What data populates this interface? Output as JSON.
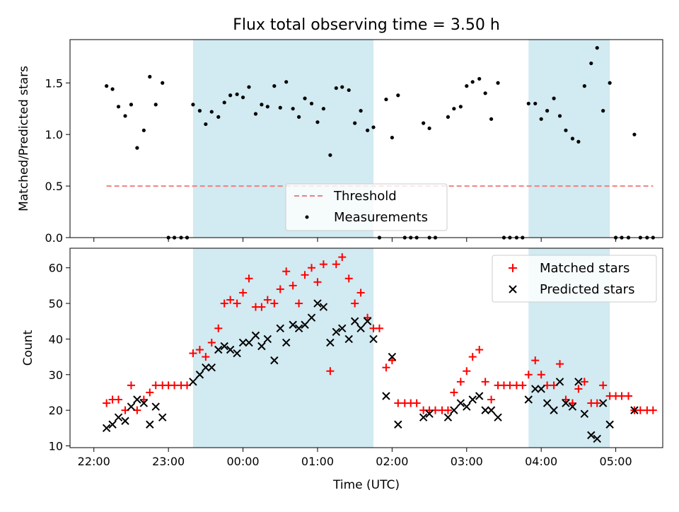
{
  "chart_data": [
    {
      "type": "scatter",
      "title": "Flux total observing time = 3.50 h",
      "xlabel": "",
      "ylabel": "Matched/Predicted stars",
      "xlim": [
        21.68,
        29.63
      ],
      "ylim": [
        0.0,
        1.92
      ],
      "yticks": [
        0.0,
        0.5,
        1.0,
        1.5
      ],
      "yticklabels": [
        "0.0",
        "0.5",
        "1.0",
        "1.5"
      ],
      "shaded_intervals": [
        [
          23.33,
          25.75
        ],
        [
          27.83,
          28.92
        ]
      ],
      "threshold": {
        "label": "Threshold",
        "value": 0.5,
        "x": [
          22.17,
          29.5
        ],
        "color": "#f08080"
      },
      "legend": {
        "position": "lower center",
        "entries": [
          "Threshold",
          "Measurements"
        ]
      },
      "series": [
        {
          "name": "Measurements",
          "marker": "dot",
          "color": "#000000",
          "points": [
            [
              22.17,
              1.47
            ],
            [
              22.25,
              1.44
            ],
            [
              22.33,
              1.27
            ],
            [
              22.42,
              1.18
            ],
            [
              22.5,
              1.29
            ],
            [
              22.58,
              0.87
            ],
            [
              22.67,
              1.04
            ],
            [
              22.75,
              1.56
            ],
            [
              22.83,
              1.29
            ],
            [
              22.92,
              1.5
            ],
            [
              23.0,
              0
            ],
            [
              23.08,
              0
            ],
            [
              23.17,
              0
            ],
            [
              23.25,
              0
            ],
            [
              23.33,
              1.29
            ],
            [
              23.42,
              1.23
            ],
            [
              23.5,
              1.1
            ],
            [
              23.58,
              1.22
            ],
            [
              23.67,
              1.17
            ],
            [
              23.75,
              1.31
            ],
            [
              23.83,
              1.38
            ],
            [
              23.92,
              1.39
            ],
            [
              24.0,
              1.36
            ],
            [
              24.08,
              1.46
            ],
            [
              24.17,
              1.2
            ],
            [
              24.25,
              1.29
            ],
            [
              24.33,
              1.27
            ],
            [
              24.42,
              1.47
            ],
            [
              24.5,
              1.26
            ],
            [
              24.58,
              1.51
            ],
            [
              24.67,
              1.25
            ],
            [
              24.75,
              1.17
            ],
            [
              24.83,
              1.35
            ],
            [
              24.92,
              1.3
            ],
            [
              25.0,
              1.12
            ],
            [
              25.08,
              1.25
            ],
            [
              25.17,
              0.8
            ],
            [
              25.25,
              1.45
            ],
            [
              25.33,
              1.46
            ],
            [
              25.42,
              1.43
            ],
            [
              25.5,
              1.11
            ],
            [
              25.58,
              1.23
            ],
            [
              25.67,
              1.04
            ],
            [
              25.75,
              1.07
            ],
            [
              25.83,
              0
            ],
            [
              25.92,
              1.34
            ],
            [
              26.0,
              0.97
            ],
            [
              26.08,
              1.38
            ],
            [
              26.17,
              0
            ],
            [
              26.25,
              0
            ],
            [
              26.33,
              0
            ],
            [
              26.5,
              0
            ],
            [
              26.58,
              0
            ],
            [
              26.42,
              1.11
            ],
            [
              26.5,
              1.06
            ],
            [
              26.75,
              1.17
            ],
            [
              26.83,
              1.25
            ],
            [
              26.92,
              1.27
            ],
            [
              27.0,
              1.47
            ],
            [
              27.08,
              1.51
            ],
            [
              27.17,
              1.54
            ],
            [
              27.25,
              1.4
            ],
            [
              27.33,
              1.15
            ],
            [
              27.42,
              1.5
            ],
            [
              27.5,
              0
            ],
            [
              27.58,
              0
            ],
            [
              27.67,
              0
            ],
            [
              27.75,
              0
            ],
            [
              27.83,
              1.3
            ],
            [
              27.92,
              1.3
            ],
            [
              28.0,
              1.15
            ],
            [
              28.08,
              1.23
            ],
            [
              28.17,
              1.35
            ],
            [
              28.25,
              1.18
            ],
            [
              28.33,
              1.04
            ],
            [
              28.42,
              0.96
            ],
            [
              28.5,
              0.93
            ],
            [
              28.58,
              1.47
            ],
            [
              28.67,
              1.69
            ],
            [
              28.75,
              1.84
            ],
            [
              28.83,
              1.23
            ],
            [
              28.92,
              1.5
            ],
            [
              29.0,
              0
            ],
            [
              29.08,
              0
            ],
            [
              29.17,
              0
            ],
            [
              29.25,
              1.0
            ],
            [
              29.33,
              0
            ],
            [
              29.42,
              0
            ],
            [
              29.5,
              0
            ]
          ]
        }
      ]
    },
    {
      "type": "scatter",
      "title": "",
      "xlabel": "Time (UTC)",
      "ylabel": "Count",
      "xlim": [
        21.68,
        29.63
      ],
      "ylim": [
        9.5,
        65.5
      ],
      "yticks": [
        10,
        20,
        30,
        40,
        50,
        60
      ],
      "yticklabels": [
        "10",
        "20",
        "30",
        "40",
        "50",
        "60"
      ],
      "xticks": [
        22,
        23,
        24,
        25,
        26,
        27,
        28,
        29
      ],
      "xticklabels": [
        "22:00",
        "23:00",
        "00:00",
        "01:00",
        "02:00",
        "03:00",
        "04:00",
        "05:00"
      ],
      "shaded_intervals": [
        [
          23.33,
          25.75
        ],
        [
          27.83,
          28.92
        ]
      ],
      "legend": {
        "position": "upper right",
        "entries": [
          "Matched stars",
          "Predicted stars"
        ]
      },
      "series": [
        {
          "name": "Matched stars",
          "marker": "plus",
          "color": "#ff0000",
          "points": [
            [
              22.17,
              22
            ],
            [
              22.25,
              23
            ],
            [
              22.33,
              23
            ],
            [
              22.42,
              20
            ],
            [
              22.5,
              27
            ],
            [
              22.58,
              20
            ],
            [
              22.67,
              23
            ],
            [
              22.75,
              25
            ],
            [
              22.83,
              27
            ],
            [
              22.92,
              27
            ],
            [
              23.0,
              27
            ],
            [
              23.08,
              27
            ],
            [
              23.17,
              27
            ],
            [
              23.25,
              27
            ],
            [
              23.33,
              36
            ],
            [
              23.42,
              37
            ],
            [
              23.5,
              35
            ],
            [
              23.58,
              39
            ],
            [
              23.67,
              43
            ],
            [
              23.75,
              50
            ],
            [
              23.83,
              51
            ],
            [
              23.92,
              50
            ],
            [
              24.0,
              53
            ],
            [
              24.08,
              57
            ],
            [
              24.17,
              49
            ],
            [
              24.25,
              49
            ],
            [
              24.33,
              51
            ],
            [
              24.42,
              50
            ],
            [
              24.5,
              54
            ],
            [
              24.58,
              59
            ],
            [
              24.67,
              55
            ],
            [
              24.75,
              50
            ],
            [
              24.83,
              58
            ],
            [
              24.92,
              60
            ],
            [
              25.0,
              56
            ],
            [
              25.08,
              61
            ],
            [
              25.17,
              31
            ],
            [
              25.25,
              61
            ],
            [
              25.33,
              63
            ],
            [
              25.42,
              57
            ],
            [
              25.5,
              50
            ],
            [
              25.58,
              53
            ],
            [
              25.67,
              46
            ],
            [
              25.75,
              43
            ],
            [
              25.83,
              43
            ],
            [
              25.92,
              32
            ],
            [
              26.0,
              34
            ],
            [
              26.08,
              22
            ],
            [
              26.17,
              22
            ],
            [
              26.25,
              22
            ],
            [
              26.33,
              22
            ],
            [
              26.42,
              20
            ],
            [
              26.5,
              20
            ],
            [
              26.58,
              20
            ],
            [
              26.67,
              20
            ],
            [
              26.75,
              20
            ],
            [
              26.83,
              25
            ],
            [
              26.92,
              28
            ],
            [
              27.0,
              31
            ],
            [
              27.08,
              35
            ],
            [
              27.17,
              37
            ],
            [
              27.25,
              28
            ],
            [
              27.33,
              23
            ],
            [
              27.42,
              27
            ],
            [
              27.5,
              27
            ],
            [
              27.58,
              27
            ],
            [
              27.67,
              27
            ],
            [
              27.75,
              27
            ],
            [
              27.83,
              30
            ],
            [
              27.92,
              34
            ],
            [
              28.0,
              30
            ],
            [
              28.08,
              27
            ],
            [
              28.17,
              27
            ],
            [
              28.25,
              33
            ],
            [
              28.33,
              23
            ],
            [
              28.42,
              22
            ],
            [
              28.5,
              26
            ],
            [
              28.58,
              28
            ],
            [
              28.67,
              22
            ],
            [
              28.75,
              22
            ],
            [
              28.83,
              27
            ],
            [
              28.92,
              24
            ],
            [
              29.0,
              24
            ],
            [
              29.08,
              24
            ],
            [
              29.17,
              24
            ],
            [
              29.25,
              20
            ],
            [
              29.33,
              20
            ],
            [
              29.42,
              20
            ],
            [
              29.5,
              20
            ]
          ]
        },
        {
          "name": "Predicted stars",
          "marker": "x",
          "color": "#000000",
          "points": [
            [
              22.17,
              15
            ],
            [
              22.25,
              16
            ],
            [
              22.33,
              18
            ],
            [
              22.42,
              17
            ],
            [
              22.5,
              21
            ],
            [
              22.58,
              23
            ],
            [
              22.67,
              22
            ],
            [
              22.75,
              16
            ],
            [
              22.83,
              21
            ],
            [
              22.92,
              18
            ],
            [
              23.33,
              28
            ],
            [
              23.42,
              30
            ],
            [
              23.5,
              32
            ],
            [
              23.58,
              32
            ],
            [
              23.67,
              37
            ],
            [
              23.75,
              38
            ],
            [
              23.83,
              37
            ],
            [
              23.92,
              36
            ],
            [
              24.0,
              39
            ],
            [
              24.08,
              39
            ],
            [
              24.17,
              41
            ],
            [
              24.25,
              38
            ],
            [
              24.33,
              40
            ],
            [
              24.42,
              34
            ],
            [
              24.5,
              43
            ],
            [
              24.58,
              39
            ],
            [
              24.67,
              44
            ],
            [
              24.75,
              43
            ],
            [
              24.83,
              44
            ],
            [
              24.92,
              46
            ],
            [
              25.0,
              50
            ],
            [
              25.08,
              49
            ],
            [
              25.17,
              39
            ],
            [
              25.25,
              42
            ],
            [
              25.33,
              43
            ],
            [
              25.42,
              40
            ],
            [
              25.5,
              45
            ],
            [
              25.58,
              43
            ],
            [
              25.67,
              45
            ],
            [
              25.75,
              40
            ],
            [
              25.92,
              24
            ],
            [
              26.0,
              35
            ],
            [
              26.08,
              16
            ],
            [
              26.42,
              18
            ],
            [
              26.5,
              19
            ],
            [
              26.75,
              18
            ],
            [
              26.83,
              20
            ],
            [
              26.92,
              22
            ],
            [
              27.0,
              21
            ],
            [
              27.08,
              23
            ],
            [
              27.17,
              24
            ],
            [
              27.25,
              20
            ],
            [
              27.33,
              20
            ],
            [
              27.42,
              18
            ],
            [
              27.83,
              23
            ],
            [
              27.92,
              26
            ],
            [
              28.0,
              26
            ],
            [
              28.08,
              22
            ],
            [
              28.17,
              20
            ],
            [
              28.25,
              28
            ],
            [
              28.33,
              22
            ],
            [
              28.42,
              21
            ],
            [
              28.5,
              28
            ],
            [
              28.58,
              19
            ],
            [
              28.67,
              13
            ],
            [
              28.75,
              12
            ],
            [
              28.83,
              22
            ],
            [
              28.92,
              16
            ],
            [
              29.25,
              20
            ]
          ]
        }
      ]
    }
  ],
  "colors": {
    "shade": "#add8e6",
    "matched": "#ff0000",
    "predicted": "#000000",
    "threshold": "#f08080"
  }
}
